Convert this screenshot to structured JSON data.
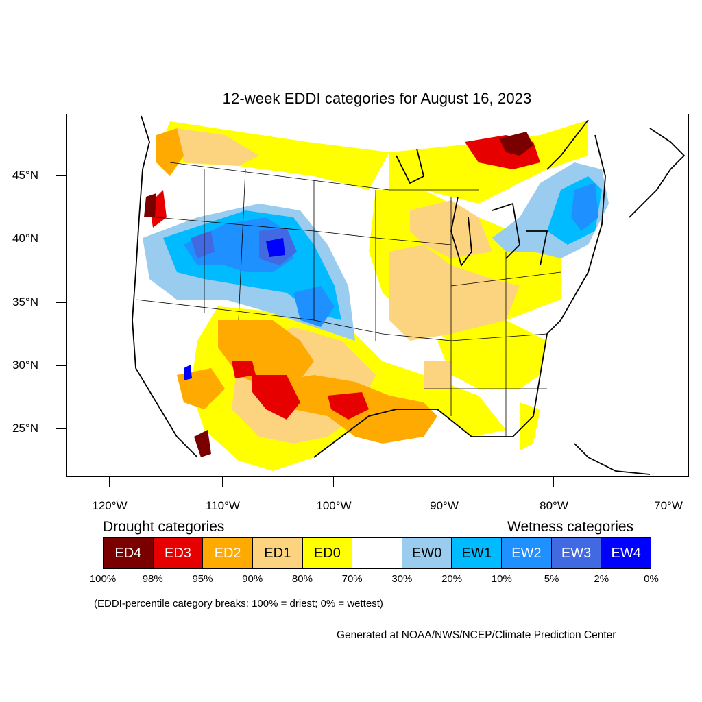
{
  "title": "12-week EDDI categories for August 16, 2023",
  "lat_labels": [
    "45°N",
    "40°N",
    "35°N",
    "30°N",
    "25°N"
  ],
  "lon_labels": [
    "120°W",
    "110°W",
    "100°W",
    "90°W",
    "80°W",
    "70°W"
  ],
  "legend": {
    "drought_heading": "Drought categories",
    "wetness_heading": "Wetness categories",
    "categories": [
      {
        "label": "ED4",
        "color": "#7a0000",
        "text_color": "#ffffff"
      },
      {
        "label": "ED3",
        "color": "#e60000",
        "text_color": "#ffffff"
      },
      {
        "label": "ED2",
        "color": "#ffaa00",
        "text_color": "#ffffff"
      },
      {
        "label": "ED1",
        "color": "#fcd37f",
        "text_color": "#000000"
      },
      {
        "label": "ED0",
        "color": "#ffff00",
        "text_color": "#000000"
      },
      {
        "label": "",
        "color": "#ffffff",
        "text_color": "#000000"
      },
      {
        "label": "EW0",
        "color": "#99ccee",
        "text_color": "#000000"
      },
      {
        "label": "EW1",
        "color": "#00bbff",
        "text_color": "#000000"
      },
      {
        "label": "EW2",
        "color": "#1e90ff",
        "text_color": "#ffffff"
      },
      {
        "label": "EW3",
        "color": "#4169e1",
        "text_color": "#ffffff"
      },
      {
        "label": "EW4",
        "color": "#0000ff",
        "text_color": "#ffffff"
      }
    ],
    "breaks": [
      "100%",
      "98%",
      "95%",
      "90%",
      "80%",
      "70%",
      "30%",
      "20%",
      "10%",
      "5%",
      "2%",
      "0%"
    ]
  },
  "note": "(EDDI-percentile category breaks: 100% = driest; 0% = wettest)",
  "credit": "Generated at NOAA/NWS/NCEP/Climate Prediction Center"
}
